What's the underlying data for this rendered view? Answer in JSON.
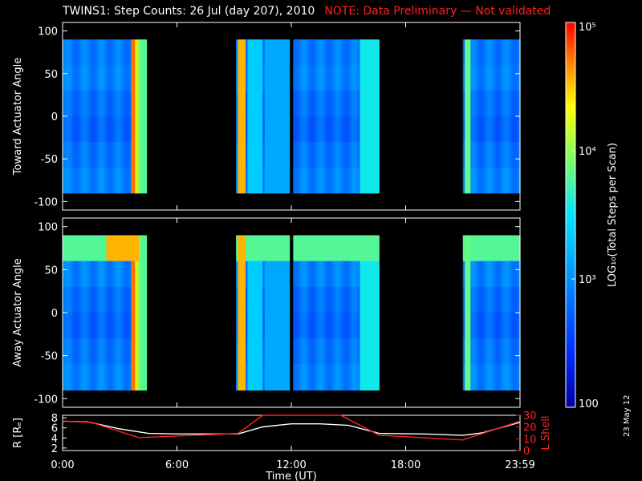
{
  "title": "TWINS1: Step Counts: 26 Jul (day 207), 2010",
  "note": "NOTE: Data Preliminary — Not validated",
  "stamp": "23 May 12",
  "colors": {
    "axis": "#ffffff",
    "note": "#ff2020",
    "lshell": "#ff2020",
    "r_line": "#ffffff"
  },
  "chart_data": [
    {
      "type": "heatmap",
      "ylabel": "Toward Actuator Angle",
      "ylim": [
        -110,
        110
      ],
      "yticks": [
        100,
        50,
        0,
        -50,
        -100
      ],
      "x_range_hours": [
        0,
        24
      ],
      "data_y_range": [
        -90,
        90
      ],
      "log_scale": true,
      "segments": [
        {
          "start": 0.0,
          "end": 4.4
        },
        {
          "start": 9.1,
          "end": 11.9
        },
        {
          "start": 12.1,
          "end": 16.6
        },
        {
          "start": 21.0,
          "end": 24.0
        }
      ]
    },
    {
      "type": "heatmap",
      "ylabel": "Away Actuator Angle",
      "ylim": [
        -110,
        110
      ],
      "yticks": [
        100,
        50,
        0,
        -50,
        -100
      ],
      "x_range_hours": [
        0,
        24
      ],
      "data_y_range": [
        -90,
        90
      ],
      "log_scale": true,
      "segments": [
        {
          "start": 0.0,
          "end": 4.4
        },
        {
          "start": 9.1,
          "end": 11.9
        },
        {
          "start": 12.1,
          "end": 16.6
        },
        {
          "start": 21.0,
          "end": 24.0
        }
      ]
    },
    {
      "type": "line",
      "ylabel_left": "R [Rₑ]",
      "ylabel_right": "L Shell",
      "xlabel": "Time (UT)",
      "xtick_labels": [
        "0:00",
        "6:00",
        "12:00",
        "18:00",
        "23:59"
      ],
      "xtick_hours": [
        0,
        6,
        12,
        18,
        24
      ],
      "left_ylim": [
        1.5,
        8.5
      ],
      "left_yticks": [
        8,
        6,
        4,
        2
      ],
      "right_ylim": [
        0,
        30
      ],
      "right_yticks": [
        30,
        20,
        10,
        0
      ],
      "series": [
        {
          "axis": "left",
          "x": [
            0,
            1.3,
            3,
            4.5,
            6,
            9.2,
            10.5,
            12,
            13.5,
            15,
            16.6,
            19,
            21,
            22,
            24
          ],
          "y": [
            7.3,
            7.2,
            5.8,
            4.9,
            4.8,
            4.8,
            6.2,
            6.8,
            6.8,
            6.5,
            4.9,
            4.8,
            4.5,
            5.0,
            7.1
          ]
        },
        {
          "axis": "right",
          "x": [
            0,
            1.5,
            4,
            9.2,
            10.5,
            14.6,
            16.6,
            21,
            24
          ],
          "y": [
            25,
            24,
            11,
            14.5,
            31,
            31,
            13,
            9,
            25
          ]
        }
      ]
    }
  ],
  "colorbar": {
    "label": "LOG₁₀(Total Steps per Scan)",
    "ticks": [
      "10⁵",
      "10⁴",
      "10³",
      "100"
    ],
    "tick_values": [
      100000,
      10000,
      1000,
      100
    ],
    "range": [
      100,
      100000
    ]
  }
}
